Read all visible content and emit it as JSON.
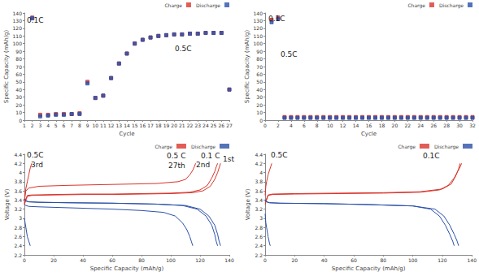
{
  "chart_data": [
    {
      "type": "scatter",
      "x_label": "Cycle",
      "y_label": "Specific Capacity (mAh/g)",
      "xlim": [
        1,
        27
      ],
      "xticks": [
        1,
        2,
        3,
        4,
        5,
        6,
        7,
        8,
        9,
        10,
        11,
        12,
        13,
        14,
        15,
        16,
        17,
        18,
        19,
        20,
        21,
        22,
        23,
        24,
        25,
        26,
        27
      ],
      "ylim": [
        0,
        140
      ],
      "yticks": [
        0,
        10,
        20,
        30,
        40,
        50,
        60,
        70,
        80,
        90,
        100,
        110,
        120,
        130,
        140
      ],
      "grid": false,
      "legend": "upper right",
      "marker": "square",
      "annotations": [
        "0.1C",
        "0.5C"
      ],
      "x": [
        2,
        3,
        4,
        5,
        6,
        7,
        8,
        9,
        10,
        11,
        12,
        13,
        14,
        15,
        16,
        17,
        18,
        19,
        20,
        21,
        22,
        23,
        24,
        25,
        26,
        27
      ],
      "series": [
        {
          "name": "Charge",
          "color": "#d9342b",
          "values": [
            134,
            7,
            7,
            8,
            8,
            8,
            9,
            50,
            29,
            32,
            55,
            74,
            87,
            100,
            105,
            108,
            110,
            111,
            112,
            112,
            113,
            113,
            114,
            114,
            114,
            40
          ]
        },
        {
          "name": "Discharge",
          "color": "#2b50a8",
          "values": [
            133,
            5,
            6,
            7,
            7,
            8,
            8,
            48,
            29,
            32,
            55,
            74,
            87,
            100,
            105,
            108,
            110,
            111,
            112,
            112,
            113,
            113,
            114,
            114,
            114,
            40
          ]
        }
      ]
    },
    {
      "type": "scatter",
      "x_label": "Cycle",
      "y_label": "Specific Capacity (mAh/g)",
      "xlim": [
        0,
        32
      ],
      "xticks": [
        0,
        2,
        4,
        6,
        8,
        10,
        12,
        14,
        16,
        18,
        20,
        22,
        24,
        26,
        28,
        30,
        32
      ],
      "ylim": [
        0,
        140
      ],
      "yticks": [
        0,
        10,
        20,
        30,
        40,
        50,
        60,
        70,
        80,
        90,
        100,
        110,
        120,
        130,
        140
      ],
      "grid": false,
      "legend": "upper right",
      "marker": "square",
      "annotations": [
        "0.1C",
        "0.5C"
      ],
      "x": [
        1,
        2,
        3,
        4,
        5,
        6,
        7,
        8,
        9,
        10,
        11,
        12,
        13,
        14,
        15,
        16,
        17,
        18,
        19,
        20,
        21,
        22,
        23,
        24,
        25,
        26,
        27,
        28,
        29,
        30,
        31,
        32
      ],
      "series": [
        {
          "name": "Charge",
          "color": "#d9342b",
          "values": [
            131,
            134,
            4,
            4,
            4,
            4,
            4,
            4,
            4,
            4,
            4,
            4,
            4,
            4,
            4,
            4,
            4,
            4,
            4,
            4,
            4,
            4,
            4,
            4,
            4,
            4,
            4,
            4,
            4,
            4,
            4,
            4
          ]
        },
        {
          "name": "Discharge",
          "color": "#2b50a8",
          "values": [
            128,
            132,
            3,
            3,
            3,
            3,
            3,
            3,
            3,
            3,
            3,
            3,
            3,
            3,
            3,
            3,
            3,
            3,
            3,
            3,
            3,
            3,
            3,
            3,
            3,
            3,
            3,
            3,
            3,
            3,
            3,
            3
          ]
        }
      ]
    },
    {
      "type": "line",
      "x_label": "Specific Capacity (mAh/g)",
      "y_label": "Voltage (V)",
      "xlim": [
        0,
        140
      ],
      "xticks": [
        0,
        20,
        40,
        60,
        80,
        100,
        120,
        140
      ],
      "ylim": [
        2.2,
        4.4
      ],
      "yticks": [
        2.2,
        2.4,
        2.6,
        2.8,
        3,
        3.2,
        3.4,
        3.6,
        3.8,
        4,
        4.2,
        4.4
      ],
      "grid": false,
      "legend": "upper right",
      "annotations": [
        "0.5C",
        "3rd",
        "0.5 C",
        "27th",
        "0.1 C",
        "1st",
        "2nd"
      ],
      "series": [
        {
          "name": "Charge",
          "color": "#d9342b",
          "x": [
            0,
            2,
            5,
            20,
            40,
            60,
            80,
            100,
            115,
            122,
            127,
            130,
            132,
            133,
            134
          ],
          "values": [
            3.3,
            3.48,
            3.5,
            3.51,
            3.52,
            3.52,
            3.53,
            3.54,
            3.56,
            3.6,
            3.7,
            3.85,
            4.0,
            4.1,
            4.2
          ]
        },
        {
          "name": "Charge",
          "color": "#d9342b",
          "x": [
            0,
            2,
            5,
            20,
            40,
            60,
            80,
            100,
            113,
            120,
            125,
            128,
            130,
            131,
            132
          ],
          "values": [
            3.35,
            3.5,
            3.51,
            3.52,
            3.53,
            3.53,
            3.54,
            3.55,
            3.57,
            3.62,
            3.72,
            3.88,
            4.02,
            4.12,
            4.2
          ]
        },
        {
          "name": "Charge",
          "color": "#d9342b",
          "x": [
            0,
            0.5,
            1,
            2,
            3,
            4,
            5
          ],
          "values": [
            3.3,
            3.55,
            3.65,
            3.8,
            3.95,
            4.1,
            4.2
          ]
        },
        {
          "name": "Charge",
          "color": "#d9342b",
          "x": [
            0,
            1,
            3,
            10,
            30,
            60,
            90,
            105,
            110,
            113,
            115,
            116,
            117
          ],
          "values": [
            3.4,
            3.6,
            3.66,
            3.7,
            3.72,
            3.74,
            3.76,
            3.8,
            3.85,
            3.95,
            4.05,
            4.12,
            4.2
          ]
        },
        {
          "name": "Discharge",
          "color": "#2b50a8",
          "x": [
            0,
            1,
            3,
            10,
            30,
            60,
            90,
            110,
            120,
            126,
            130,
            132,
            133,
            134
          ],
          "values": [
            3.42,
            3.38,
            3.36,
            3.35,
            3.34,
            3.33,
            3.31,
            3.28,
            3.2,
            3.05,
            2.85,
            2.65,
            2.5,
            2.4
          ]
        },
        {
          "name": "Discharge",
          "color": "#2b50a8",
          "x": [
            0,
            1,
            3,
            10,
            30,
            60,
            90,
            108,
            118,
            124,
            128,
            130,
            131,
            132
          ],
          "values": [
            3.42,
            3.38,
            3.36,
            3.35,
            3.34,
            3.33,
            3.31,
            3.28,
            3.2,
            3.05,
            2.85,
            2.65,
            2.5,
            2.4
          ]
        },
        {
          "name": "Discharge",
          "color": "#2b50a8",
          "x": [
            0,
            0.5,
            1,
            2,
            3,
            4
          ],
          "values": [
            3.0,
            2.9,
            2.8,
            2.6,
            2.5,
            2.4
          ]
        },
        {
          "name": "Discharge",
          "color": "#2b50a8",
          "x": [
            0,
            1,
            3,
            10,
            30,
            60,
            80,
            95,
            103,
            108,
            111,
            113,
            114,
            115
          ],
          "values": [
            3.3,
            3.28,
            3.26,
            3.25,
            3.23,
            3.2,
            3.17,
            3.13,
            3.05,
            2.9,
            2.75,
            2.6,
            2.5,
            2.4
          ]
        }
      ]
    },
    {
      "type": "line",
      "x_label": "Specific Capacity (mAh/g)",
      "y_label": "Voltage (V)",
      "xlim": [
        0,
        140
      ],
      "xticks": [
        0,
        20,
        40,
        60,
        80,
        100,
        120,
        140
      ],
      "ylim": [
        2.2,
        4.4
      ],
      "yticks": [
        2.2,
        2.4,
        2.6,
        2.8,
        3,
        3.2,
        3.4,
        3.6,
        3.8,
        4,
        4.2,
        4.4
      ],
      "grid": false,
      "legend": "upper right",
      "annotations": [
        "0.5C",
        "0.1C"
      ],
      "series": [
        {
          "name": "Charge",
          "color": "#d9342b",
          "x": [
            0,
            2,
            5,
            20,
            50,
            80,
            105,
            118,
            124,
            128,
            130,
            132,
            133
          ],
          "values": [
            3.3,
            3.5,
            3.52,
            3.53,
            3.54,
            3.55,
            3.57,
            3.62,
            3.72,
            3.88,
            4.0,
            4.12,
            4.2
          ]
        },
        {
          "name": "Charge",
          "color": "#d9342b",
          "x": [
            0,
            2,
            5,
            20,
            50,
            80,
            105,
            120,
            126,
            129,
            131,
            132
          ],
          "values": [
            3.35,
            3.51,
            3.53,
            3.54,
            3.55,
            3.56,
            3.58,
            3.64,
            3.75,
            3.92,
            4.08,
            4.2
          ]
        },
        {
          "name": "Charge",
          "color": "#d9342b",
          "x": [
            0,
            0.5,
            1,
            2,
            3,
            4,
            4.5
          ],
          "values": [
            3.5,
            3.7,
            3.8,
            3.95,
            4.05,
            4.15,
            4.2
          ]
        },
        {
          "name": "Discharge",
          "color": "#2b50a8",
          "x": [
            0,
            1,
            3,
            10,
            40,
            70,
            100,
            112,
            118,
            122,
            125,
            127,
            128
          ],
          "values": [
            3.4,
            3.36,
            3.34,
            3.33,
            3.32,
            3.3,
            3.27,
            3.2,
            3.05,
            2.85,
            2.65,
            2.5,
            2.4
          ]
        },
        {
          "name": "Discharge",
          "color": "#2b50a8",
          "x": [
            0,
            1,
            3,
            10,
            40,
            70,
            100,
            115,
            121,
            125,
            128,
            130,
            131
          ],
          "values": [
            3.4,
            3.36,
            3.34,
            3.33,
            3.32,
            3.3,
            3.27,
            3.2,
            3.05,
            2.85,
            2.65,
            2.5,
            2.4
          ]
        },
        {
          "name": "Discharge",
          "color": "#2b50a8",
          "x": [
            0,
            0.5,
            1,
            2,
            3,
            3.5
          ],
          "values": [
            3.1,
            2.9,
            2.8,
            2.6,
            2.45,
            2.4
          ]
        }
      ]
    }
  ]
}
